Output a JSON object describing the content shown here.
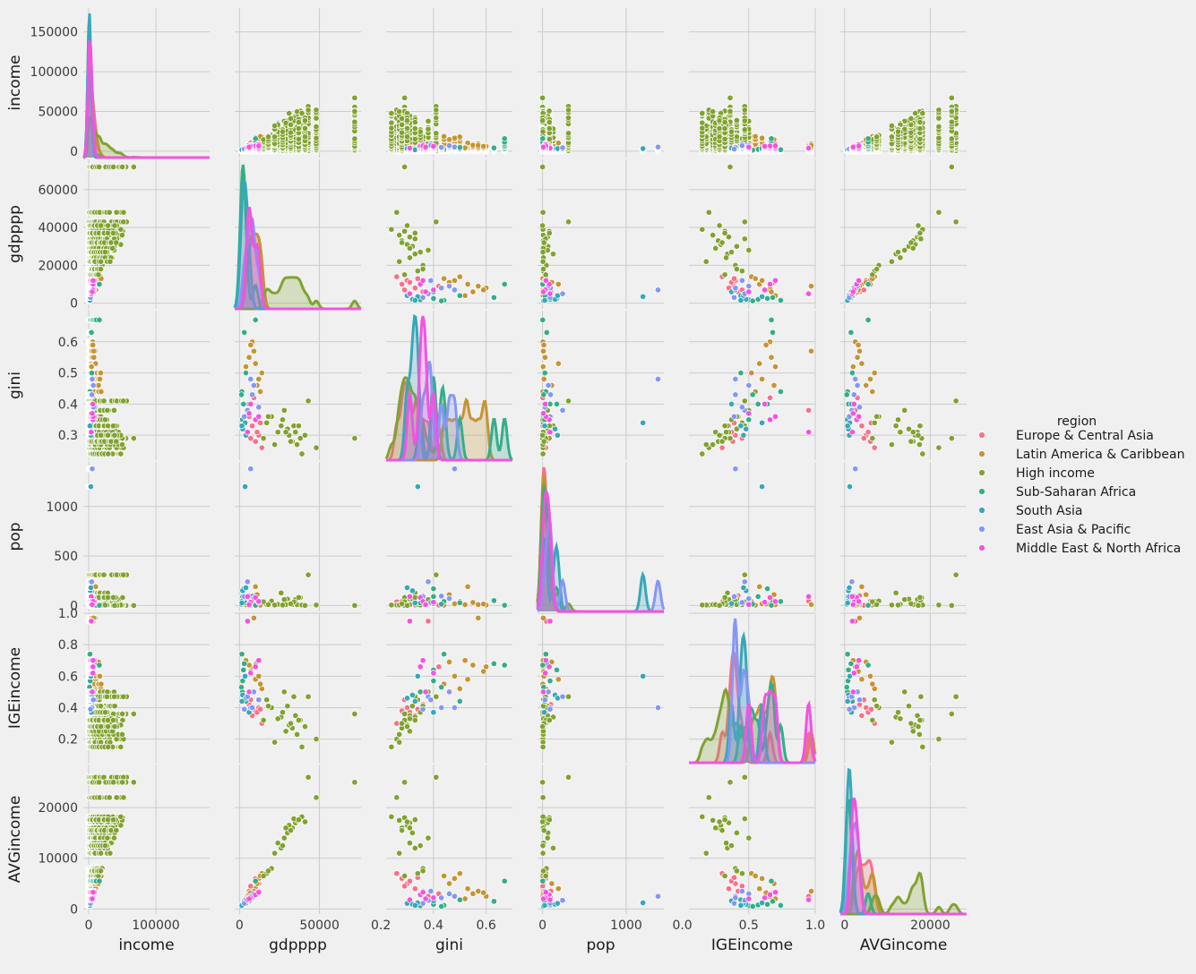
{
  "chart_data": {
    "type": "scatter",
    "subtype": "pairplot",
    "variables": [
      "income",
      "gdpppp",
      "gini",
      "pop",
      "IGEincome",
      "AVGincome"
    ],
    "diagonal": "kde",
    "offdiagonal": "scatter",
    "grid": true,
    "legend": {
      "title": "region",
      "placement": "right",
      "entries": [
        {
          "name": "Europe & Central Asia",
          "color": "#f77189"
        },
        {
          "name": "Latin America & Caribbean",
          "color": "#c69432"
        },
        {
          "name": "High income",
          "color": "#81a22f"
        },
        {
          "name": "Sub-Saharan Africa",
          "color": "#35ad8a"
        },
        {
          "name": "South Asia",
          "color": "#36a8b9"
        },
        {
          "name": "East Asia & Pacific",
          "color": "#8597f4"
        },
        {
          "name": "Middle East & North Africa",
          "color": "#f353e0"
        }
      ]
    },
    "axes": {
      "income": {
        "lim": [
          -8000,
          180000
        ],
        "ticks": [
          0,
          50000,
          100000,
          150000
        ],
        "tick_labels": [
          "0",
          "50000",
          "100000",
          "150000"
        ],
        "x_ticks": [
          0,
          100000
        ],
        "x_tick_labels": [
          "0",
          "100000"
        ]
      },
      "gdpppp": {
        "lim": [
          -3000,
          76000
        ],
        "ticks": [
          0,
          20000,
          40000,
          60000
        ],
        "tick_labels": [
          "0",
          "20000",
          "40000",
          "60000"
        ],
        "x_ticks": [
          0,
          50000
        ],
        "x_tick_labels": [
          "0",
          "50000"
        ]
      },
      "gini": {
        "lim": [
          0.22,
          0.7
        ],
        "ticks": [
          0.3,
          0.4,
          0.5,
          0.6
        ],
        "tick_labels": [
          "0.3",
          "0.4",
          "0.5",
          "0.6"
        ],
        "x_ticks": [
          0.2,
          0.4,
          0.6
        ],
        "x_tick_labels": [
          "0.2",
          "0.4",
          "0.6"
        ]
      },
      "pop": {
        "lim": [
          -60,
          1450
        ],
        "ticks": [
          0,
          500,
          1000
        ],
        "tick_labels": [
          "0",
          "500",
          "1000"
        ],
        "x_ticks": [
          0,
          1000
        ],
        "x_tick_labels": [
          "0",
          "1000"
        ]
      },
      "IGEincome": {
        "lim": [
          0.05,
          1.0
        ],
        "ticks": [
          0.2,
          0.4,
          0.6,
          0.8,
          1.0
        ],
        "tick_labels": [
          "0.2",
          "0.4",
          "0.6",
          "0.8",
          "1.0"
        ],
        "x_ticks": [
          0.0,
          0.5,
          1.0
        ],
        "x_tick_labels": [
          "0.0",
          "0.5",
          "1.0"
        ]
      },
      "AVGincome": {
        "lim": [
          -1000,
          28500
        ],
        "ticks": [
          0,
          10000,
          20000
        ],
        "tick_labels": [
          "0",
          "10000",
          "20000"
        ],
        "x_ticks": [
          0,
          20000
        ],
        "x_tick_labels": [
          "0",
          "20000"
        ]
      }
    },
    "countries": [
      {
        "region": 0,
        "gdpppp": 10000,
        "gini": 0.28,
        "pop": 40,
        "IGEincome": 0.38,
        "AVGincome": 6000
      },
      {
        "region": 0,
        "gdpppp": 12000,
        "gini": 0.3,
        "pop": 10,
        "IGEincome": 0.4,
        "AVGincome": 5000
      },
      {
        "region": 0,
        "gdpppp": 8000,
        "gini": 0.33,
        "pop": 5,
        "IGEincome": 0.35,
        "AVGincome": 4000
      },
      {
        "region": 0,
        "gdpppp": 6000,
        "gini": 0.36,
        "pop": 100,
        "IGEincome": 0.42,
        "AVGincome": 3500
      },
      {
        "region": 0,
        "gdpppp": 14000,
        "gini": 0.26,
        "pop": 38,
        "IGEincome": 0.3,
        "AVGincome": 7000
      },
      {
        "region": 0,
        "gdpppp": 9000,
        "gini": 0.42,
        "pop": 3,
        "IGEincome": 0.66,
        "AVGincome": 3000
      },
      {
        "region": 0,
        "gdpppp": 11000,
        "gini": 0.31,
        "pop": 9,
        "IGEincome": 0.37,
        "AVGincome": 5500
      },
      {
        "region": 0,
        "gdpppp": 7000,
        "gini": 0.29,
        "pop": 2,
        "IGEincome": 0.45,
        "AVGincome": 4500
      },
      {
        "region": 0,
        "gdpppp": 13000,
        "gini": 0.34,
        "pop": 20,
        "IGEincome": 0.39,
        "AVGincome": 6200
      },
      {
        "region": 0,
        "gdpppp": 5000,
        "gini": 0.38,
        "pop": 45,
        "IGEincome": 0.95,
        "AVGincome": 2500
      },
      {
        "region": 1,
        "gdpppp": 10000,
        "gini": 0.53,
        "pop": 190,
        "IGEincome": 0.58,
        "AVGincome": 4000
      },
      {
        "region": 1,
        "gdpppp": 14000,
        "gini": 0.5,
        "pop": 40,
        "IGEincome": 0.52,
        "AVGincome": 7000
      },
      {
        "region": 1,
        "gdpppp": 8000,
        "gini": 0.6,
        "pop": 5,
        "IGEincome": 0.66,
        "AVGincome": 2500
      },
      {
        "region": 1,
        "gdpppp": 12000,
        "gini": 0.48,
        "pop": 17,
        "IGEincome": 0.6,
        "AVGincome": 6000
      },
      {
        "region": 1,
        "gdpppp": 6000,
        "gini": 0.55,
        "pop": 30,
        "IGEincome": 0.67,
        "AVGincome": 3000
      },
      {
        "region": 1,
        "gdpppp": 9000,
        "gini": 0.57,
        "pop": 10,
        "IGEincome": 0.97,
        "AVGincome": 3500
      },
      {
        "region": 1,
        "gdpppp": 11000,
        "gini": 0.46,
        "pop": 110,
        "IGEincome": 0.69,
        "AVGincome": 5000
      },
      {
        "region": 1,
        "gdpppp": 4000,
        "gini": 0.52,
        "pop": 8,
        "IGEincome": 0.7,
        "AVGincome": 2000
      },
      {
        "region": 1,
        "gdpppp": 13000,
        "gini": 0.44,
        "pop": 3,
        "IGEincome": 0.55,
        "AVGincome": 6500
      },
      {
        "region": 1,
        "gdpppp": 7000,
        "gini": 0.59,
        "pop": 15,
        "IGEincome": 0.63,
        "AVGincome": 3200
      },
      {
        "region": 2,
        "gdpppp": 35000,
        "gini": 0.31,
        "pop": 60,
        "IGEincome": 0.35,
        "AVGincome": 17000
      },
      {
        "region": 2,
        "gdpppp": 43000,
        "gini": 0.41,
        "pop": 310,
        "IGEincome": 0.47,
        "AVGincome": 26000
      },
      {
        "region": 2,
        "gdpppp": 38000,
        "gini": 0.29,
        "pop": 80,
        "IGEincome": 0.32,
        "AVGincome": 18000
      },
      {
        "region": 2,
        "gdpppp": 33000,
        "gini": 0.28,
        "pop": 10,
        "IGEincome": 0.27,
        "AVGincome": 16000
      },
      {
        "region": 2,
        "gdpppp": 30000,
        "gini": 0.32,
        "pop": 65,
        "IGEincome": 0.41,
        "AVGincome": 15000
      },
      {
        "region": 2,
        "gdpppp": 26000,
        "gini": 0.33,
        "pop": 127,
        "IGEincome": 0.34,
        "AVGincome": 12000
      },
      {
        "region": 2,
        "gdpppp": 48000,
        "gini": 0.26,
        "pop": 5,
        "IGEincome": 0.2,
        "AVGincome": 22000
      },
      {
        "region": 2,
        "gdpppp": 72000,
        "gini": 0.29,
        "pop": 0.5,
        "IGEincome": 0.36,
        "AVGincome": 25000
      },
      {
        "region": 2,
        "gdpppp": 20000,
        "gini": 0.36,
        "pop": 46,
        "IGEincome": 0.4,
        "AVGincome": 8000
      },
      {
        "region": 2,
        "gdpppp": 17000,
        "gini": 0.34,
        "pop": 10,
        "IGEincome": 0.45,
        "AVGincome": 7000
      },
      {
        "region": 2,
        "gdpppp": 36000,
        "gini": 0.27,
        "pop": 9,
        "IGEincome": 0.23,
        "AVGincome": 17500
      },
      {
        "region": 2,
        "gdpppp": 31000,
        "gini": 0.3,
        "pop": 16,
        "IGEincome": 0.29,
        "AVGincome": 16500
      },
      {
        "region": 2,
        "gdpppp": 28000,
        "gini": 0.38,
        "pop": 60,
        "IGEincome": 0.5,
        "AVGincome": 14000
      },
      {
        "region": 2,
        "gdpppp": 24000,
        "gini": 0.31,
        "pop": 11,
        "IGEincome": 0.33,
        "AVGincome": 13000
      },
      {
        "region": 2,
        "gdpppp": 22000,
        "gini": 0.27,
        "pop": 5,
        "IGEincome": 0.18,
        "AVGincome": 11000
      },
      {
        "region": 2,
        "gdpppp": 34000,
        "gini": 0.33,
        "pop": 35,
        "IGEincome": 0.47,
        "AVGincome": 17800
      },
      {
        "region": 2,
        "gdpppp": 39000,
        "gini": 0.24,
        "pop": 5.5,
        "IGEincome": 0.15,
        "AVGincome": 18200
      },
      {
        "region": 2,
        "gdpppp": 15000,
        "gini": 0.29,
        "pop": 38,
        "IGEincome": 0.32,
        "AVGincome": 6500
      },
      {
        "region": 2,
        "gdpppp": 29000,
        "gini": 0.31,
        "pop": 8.5,
        "IGEincome": 0.25,
        "AVGincome": 16000
      },
      {
        "region": 2,
        "gdpppp": 32000,
        "gini": 0.28,
        "pop": 17,
        "IGEincome": 0.3,
        "AVGincome": 15500
      },
      {
        "region": 2,
        "gdpppp": 18000,
        "gini": 0.36,
        "pop": 10,
        "IGEincome": 0.41,
        "AVGincome": 7500
      },
      {
        "region": 2,
        "gdpppp": 41000,
        "gini": 0.3,
        "pop": 0.4,
        "IGEincome": 0.28,
        "AVGincome": 17200
      },
      {
        "region": 2,
        "gdpppp": 27000,
        "gini": 0.35,
        "pop": 4.5,
        "IGEincome": 0.37,
        "AVGincome": 12500
      },
      {
        "region": 2,
        "gdpppp": 37000,
        "gini": 0.33,
        "pop": 82,
        "IGEincome": 0.32,
        "AVGincome": 17600
      },
      {
        "region": 3,
        "gdpppp": 2000,
        "gini": 0.4,
        "pop": 90,
        "IGEincome": 0.57,
        "AVGincome": 800
      },
      {
        "region": 3,
        "gdpppp": 3000,
        "gini": 0.63,
        "pop": 50,
        "IGEincome": 0.68,
        "AVGincome": 1500
      },
      {
        "region": 3,
        "gdpppp": 1500,
        "gini": 0.44,
        "pop": 40,
        "IGEincome": 0.74,
        "AVGincome": 700
      },
      {
        "region": 3,
        "gdpppp": 10000,
        "gini": 0.67,
        "pop": 2,
        "IGEincome": 0.67,
        "AVGincome": 5500
      },
      {
        "region": 3,
        "gdpppp": 2500,
        "gini": 0.4,
        "pop": 170,
        "IGEincome": 0.64,
        "AVGincome": 900
      },
      {
        "region": 3,
        "gdpppp": 1800,
        "gini": 0.35,
        "pop": 25,
        "IGEincome": 0.5,
        "AVGincome": 650
      },
      {
        "region": 3,
        "gdpppp": 4000,
        "gini": 0.5,
        "pop": 28,
        "IGEincome": 0.44,
        "AVGincome": 1800
      },
      {
        "region": 3,
        "gdpppp": 1200,
        "gini": 0.43,
        "pop": 13,
        "IGEincome": 0.53,
        "AVGincome": 500
      },
      {
        "region": 4,
        "gdpppp": 3500,
        "gini": 0.34,
        "pop": 1200,
        "IGEincome": 0.6,
        "AVGincome": 1200
      },
      {
        "region": 4,
        "gdpppp": 2000,
        "gini": 0.32,
        "pop": 150,
        "IGEincome": 0.48,
        "AVGincome": 900
      },
      {
        "region": 4,
        "gdpppp": 4000,
        "gini": 0.3,
        "pop": 180,
        "IGEincome": 0.46,
        "AVGincome": 1100
      },
      {
        "region": 4,
        "gdpppp": 6000,
        "gini": 0.4,
        "pop": 20,
        "IGEincome": 0.37,
        "AVGincome": 1600
      },
      {
        "region": 4,
        "gdpppp": 1500,
        "gini": 0.33,
        "pop": 26,
        "IGEincome": 0.44,
        "AVGincome": 700
      },
      {
        "region": 5,
        "gdpppp": 7000,
        "gini": 0.48,
        "pop": 1380,
        "IGEincome": 0.4,
        "AVGincome": 2500
      },
      {
        "region": 5,
        "gdpppp": 5000,
        "gini": 0.38,
        "pop": 240,
        "IGEincome": 0.47,
        "AVGincome": 1700
      },
      {
        "region": 5,
        "gdpppp": 8000,
        "gini": 0.43,
        "pop": 95,
        "IGEincome": 0.4,
        "AVGincome": 2200
      },
      {
        "region": 5,
        "gdpppp": 12000,
        "gini": 0.39,
        "pop": 30,
        "IGEincome": 0.45,
        "AVGincome": 3500
      },
      {
        "region": 5,
        "gdpppp": 3000,
        "gini": 0.36,
        "pop": 90,
        "IGEincome": 0.39,
        "AVGincome": 1100
      },
      {
        "region": 5,
        "gdpppp": 9000,
        "gini": 0.46,
        "pop": 70,
        "IGEincome": 0.5,
        "AVGincome": 3000
      },
      {
        "region": 6,
        "gdpppp": 10000,
        "gini": 0.35,
        "pop": 80,
        "IGEincome": 0.66,
        "AVGincome": 2800
      },
      {
        "region": 6,
        "gdpppp": 5000,
        "gini": 0.31,
        "pop": 90,
        "IGEincome": 0.95,
        "AVGincome": 1800
      },
      {
        "region": 6,
        "gdpppp": 7000,
        "gini": 0.4,
        "pop": 33,
        "IGEincome": 0.62,
        "AVGincome": 2200
      },
      {
        "region": 6,
        "gdpppp": 12000,
        "gini": 0.36,
        "pop": 40,
        "IGEincome": 0.7,
        "AVGincome": 3300
      },
      {
        "region": 6,
        "gdpppp": 6000,
        "gini": 0.37,
        "pop": 10,
        "IGEincome": 0.5,
        "AVGincome": 2000
      }
    ]
  }
}
